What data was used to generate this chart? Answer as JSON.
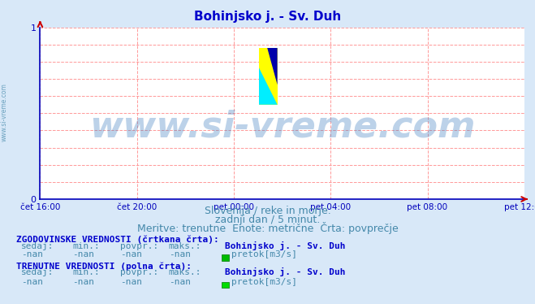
{
  "title": "Bohinjsko j. - Sv. Duh",
  "title_color": "#0000cc",
  "title_fontsize": 11,
  "bg_color": "#d8e8f8",
  "plot_bg_color": "#ffffff",
  "grid_color": "#ff9999",
  "axis_color": "#0000bb",
  "x_tick_labels": [
    "čet 16:00",
    "čet 20:00",
    "pet 00:00",
    "pet 04:00",
    "pet 08:00",
    "pet 12:00"
  ],
  "x_tick_positions": [
    0,
    240,
    480,
    720,
    960,
    1200
  ],
  "ylim": [
    0,
    1
  ],
  "xlim": [
    0,
    1200
  ],
  "y_ticks": [
    0,
    1
  ],
  "watermark": "www.si-vreme.com",
  "watermark_color": "#4080c0",
  "watermark_alpha": 0.35,
  "watermark_fontsize": 32,
  "subtitle1": "Slovenija / reke in morje.",
  "subtitle2": "zadnji dan / 5 minut.",
  "subtitle3": "Meritve: trenutne  Enote: metrične  Črta: povprečje",
  "subtitle_color": "#4488aa",
  "subtitle_fontsize": 9,
  "left_label": "www.si-vreme.com",
  "left_label_color": "#5090b0",
  "legend_section1_header": "ZGODOVINSKE VREDNOSTI (črtkana črta):",
  "legend_section1_cols": [
    "sedaj:",
    "min.:",
    "povpr.:",
    "maks.:"
  ],
  "legend_section1_vals": [
    "-nan",
    "-nan",
    "-nan",
    "-nan"
  ],
  "legend_section1_station": "Bohinjsko j. - Sv. Duh",
  "legend_section1_color_hist": "#00bb00",
  "legend_section2_header": "TRENUTNE VREDNOSTI (polna črta):",
  "legend_section2_cols": [
    "sedaj:",
    "min.:",
    "povpr.:",
    "maks.:"
  ],
  "legend_section2_vals": [
    "-nan",
    "-nan",
    "-nan",
    "-nan"
  ],
  "legend_section2_station": "Bohinjsko j. - Sv. Duh",
  "legend_section2_color_curr": "#00dd00",
  "legend_label_color": "#0000cc",
  "legend_val_color": "#4488aa",
  "legend_fontsize": 8,
  "legend_header_fontsize": 8,
  "logo_yellow": "#ffff00",
  "logo_cyan": "#00eeff",
  "logo_blue": "#0000aa"
}
